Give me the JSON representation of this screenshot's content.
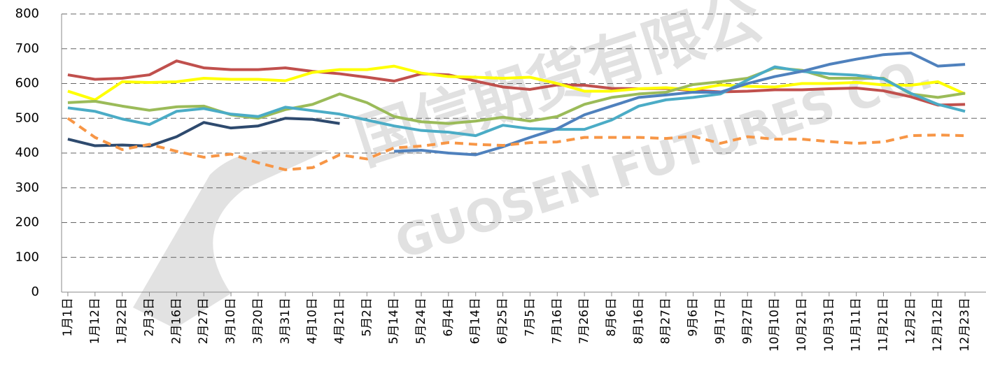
{
  "chart_data": {
    "type": "line",
    "watermark": [
      "国信期货有限公",
      "GUOSEN FUTURES CO."
    ],
    "categories": [
      "1月1日",
      "1月12日",
      "1月22日",
      "2月3日",
      "2月16日",
      "2月27日",
      "3月10日",
      "3月20日",
      "3月31日",
      "4月10日",
      "4月21日",
      "5月2日",
      "5月14日",
      "5月24日",
      "6月4日",
      "6月14日",
      "6月25日",
      "7月5日",
      "7月16日",
      "7月26日",
      "8月6日",
      "8月16日",
      "8月27日",
      "9月6日",
      "9月17日",
      "9月27日",
      "10月10日",
      "10月21日",
      "10月31日",
      "11月11日",
      "11月21日",
      "12月2日",
      "12月12日",
      "12月23日"
    ],
    "series": [
      {
        "color": "#c0504d",
        "dashed": false,
        "values": [
          625,
          612,
          615,
          625,
          665,
          645,
          640,
          640,
          645,
          635,
          628,
          618,
          607,
          628,
          625,
          607,
          590,
          583,
          596,
          595,
          586,
          585,
          586,
          580,
          576,
          578,
          582,
          582,
          585,
          587,
          579,
          562,
          538,
          540
        ]
      },
      {
        "color": "#ffff00",
        "dashed": false,
        "values": [
          578,
          553,
          605,
          603,
          605,
          615,
          612,
          612,
          608,
          632,
          640,
          640,
          650,
          630,
          620,
          618,
          615,
          618,
          600,
          578,
          578,
          585,
          588,
          582,
          596,
          592,
          590,
          600,
          600,
          603,
          596,
          595,
          605,
          570
        ]
      },
      {
        "color": "#9bbb59",
        "dashed": false,
        "values": [
          545,
          549,
          535,
          523,
          533,
          535,
          510,
          500,
          525,
          540,
          570,
          545,
          505,
          490,
          485,
          492,
          503,
          492,
          505,
          540,
          560,
          570,
          575,
          597,
          605,
          615,
          645,
          638,
          615,
          615,
          615,
          570,
          560,
          572
        ]
      },
      {
        "color": "#4bacc6",
        "dashed": false,
        "values": [
          530,
          520,
          498,
          482,
          520,
          528,
          512,
          505,
          532,
          522,
          512,
          495,
          478,
          465,
          460,
          450,
          480,
          470,
          468,
          468,
          495,
          535,
          553,
          560,
          570,
          610,
          648,
          635,
          628,
          624,
          613,
          572,
          540,
          520
        ]
      },
      {
        "color": "#2e4a6e",
        "dashed": false,
        "values": [
          440,
          421,
          423,
          420,
          447,
          488,
          472,
          478,
          500,
          497,
          485,
          null,
          null,
          null,
          null,
          null,
          null,
          null,
          null,
          null,
          null,
          null,
          null,
          null,
          null,
          null,
          null,
          null,
          null,
          null,
          null,
          null,
          null,
          null
        ]
      },
      {
        "color": "#4f81bd",
        "dashed": false,
        "values": [
          null,
          null,
          null,
          null,
          null,
          null,
          null,
          null,
          null,
          null,
          null,
          null,
          405,
          408,
          400,
          395,
          418,
          445,
          470,
          510,
          535,
          560,
          567,
          575,
          575,
          600,
          620,
          635,
          655,
          670,
          683,
          688,
          650,
          655
        ]
      },
      {
        "color": "#f79646",
        "dashed": true,
        "values": [
          500,
          445,
          410,
          425,
          405,
          388,
          397,
          372,
          352,
          358,
          395,
          383,
          415,
          420,
          430,
          425,
          422,
          430,
          432,
          445,
          445,
          445,
          442,
          448,
          428,
          447,
          440,
          440,
          433,
          428,
          432,
          450,
          452,
          450
        ]
      }
    ],
    "ylim": [
      0,
      800
    ],
    "yticks": [
      0,
      100,
      200,
      300,
      400,
      500,
      600,
      700,
      800
    ],
    "grid": true
  }
}
